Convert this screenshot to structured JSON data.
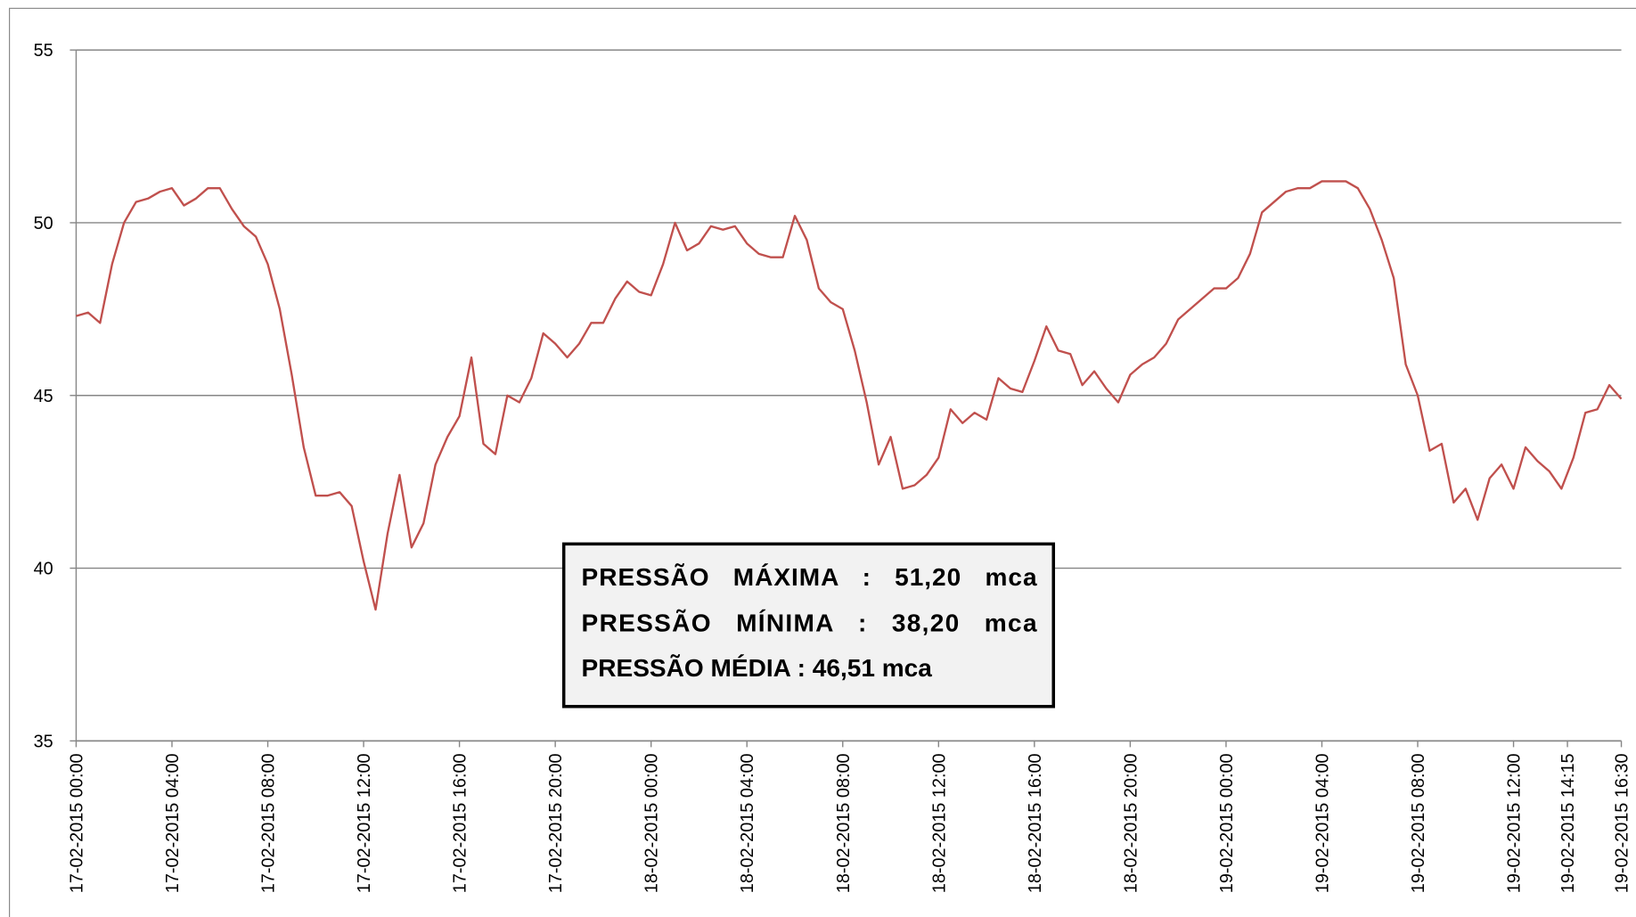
{
  "chart_data": {
    "type": "line",
    "x": [
      0,
      0.5,
      1,
      1.5,
      2,
      2.5,
      3,
      3.5,
      4,
      4.5,
      5,
      5.5,
      6,
      6.5,
      7,
      7.5,
      8,
      8.5,
      9,
      9.5,
      10,
      10.5,
      11,
      11.5,
      12,
      12.5,
      13,
      13.5,
      14,
      14.5,
      15,
      15.5,
      16,
      16.5,
      17,
      17.5,
      18,
      18.5,
      19,
      19.5,
      20,
      20.5,
      21,
      21.5,
      22,
      22.5,
      23,
      23.5,
      24,
      24.5,
      25,
      25.5,
      26,
      26.5,
      27,
      27.5,
      28,
      28.5,
      29,
      29.5,
      30,
      30.5,
      31,
      31.5,
      32,
      32.5,
      33,
      33.5,
      34,
      34.5,
      35,
      35.5,
      36,
      36.5,
      37,
      37.5,
      38,
      38.5,
      39,
      39.5,
      40,
      40.5,
      41,
      41.5,
      42,
      42.5,
      43,
      43.5,
      44,
      44.5,
      45,
      45.5,
      46,
      46.5,
      47,
      47.5,
      48,
      48.5,
      49,
      49.5,
      50,
      50.5,
      51,
      51.5,
      52,
      52.5,
      53,
      53.5,
      54,
      54.5,
      55,
      55.5,
      56,
      56.5,
      57,
      57.5,
      58,
      58.5,
      59,
      59.5,
      60,
      60.5,
      61,
      61.5,
      62,
      62.5,
      63,
      63.5,
      64,
      64.5
    ],
    "series": [
      {
        "color": "#c0504d",
        "values": [
          47.3,
          47.4,
          47.1,
          48.8,
          50.0,
          50.6,
          50.7,
          50.9,
          51.0,
          50.5,
          50.7,
          51.0,
          51.0,
          50.4,
          49.9,
          49.6,
          48.8,
          47.5,
          45.6,
          43.5,
          42.1,
          42.1,
          42.2,
          41.8,
          40.2,
          38.8,
          41.0,
          42.7,
          40.6,
          41.3,
          43.0,
          43.8,
          44.4,
          46.1,
          43.6,
          43.3,
          45.0,
          44.8,
          45.5,
          46.8,
          46.5,
          46.1,
          46.5,
          47.1,
          47.1,
          47.8,
          48.3,
          48.0,
          47.9,
          48.8,
          50.0,
          49.2,
          49.4,
          49.9,
          49.8,
          49.9,
          49.4,
          49.1,
          49.0,
          49.0,
          50.2,
          49.5,
          48.1,
          47.7,
          47.5,
          46.3,
          44.8,
          43.0,
          43.8,
          42.3,
          42.4,
          42.7,
          43.2,
          44.6,
          44.2,
          44.5,
          44.3,
          45.5,
          45.2,
          45.1,
          46.0,
          47.0,
          46.3,
          46.2,
          45.3,
          45.7,
          45.2,
          44.8,
          45.6,
          45.9,
          46.1,
          46.5,
          47.2,
          47.5,
          47.8,
          48.1,
          48.1,
          48.4,
          49.1,
          50.3,
          50.6,
          50.9,
          51.0,
          51.0,
          51.2,
          51.2,
          51.2,
          51.0,
          50.4,
          49.5,
          48.4,
          45.9,
          45.0,
          43.4,
          43.6,
          41.9,
          42.3,
          41.4,
          42.6,
          43.0,
          42.3,
          43.5,
          43.1,
          42.8,
          42.3,
          43.2,
          44.5,
          44.6,
          45.3,
          44.9
        ]
      }
    ],
    "xlim": [
      0,
      64.5
    ],
    "xticks": [
      {
        "value": 0,
        "label": "17-02-2015 00:00"
      },
      {
        "value": 4,
        "label": "17-02-2015 04:00"
      },
      {
        "value": 8,
        "label": "17-02-2015 08:00"
      },
      {
        "value": 12,
        "label": "17-02-2015 12:00"
      },
      {
        "value": 16,
        "label": "17-02-2015 16:00"
      },
      {
        "value": 20,
        "label": "17-02-2015 20:00"
      },
      {
        "value": 24,
        "label": "18-02-2015 00:00"
      },
      {
        "value": 28,
        "label": "18-02-2015 04:00"
      },
      {
        "value": 32,
        "label": "18-02-2015 08:00"
      },
      {
        "value": 36,
        "label": "18-02-2015 12:00"
      },
      {
        "value": 40,
        "label": "18-02-2015 16:00"
      },
      {
        "value": 44,
        "label": "18-02-2015 20:00"
      },
      {
        "value": 48,
        "label": "19-02-2015 00:00"
      },
      {
        "value": 52,
        "label": "19-02-2015 04:00"
      },
      {
        "value": 56,
        "label": "19-02-2015 08:00"
      },
      {
        "value": 60,
        "label": "19-02-2015 12:00"
      },
      {
        "value": 62.25,
        "label": "19-02-2015 14:15"
      },
      {
        "value": 64.5,
        "label": "19-02-2015 16:30"
      }
    ],
    "ylim": [
      35,
      55
    ],
    "yticks": [
      35,
      40,
      45,
      50,
      55
    ],
    "grid": true,
    "annotations": [
      "PRESSÃO   MÁXIMA   :   51,20   mca",
      "PRESSÃO   MÍNIMA   :   38,20   mca",
      "PRESSÃO MÉDIA : 46,51 mca"
    ]
  }
}
